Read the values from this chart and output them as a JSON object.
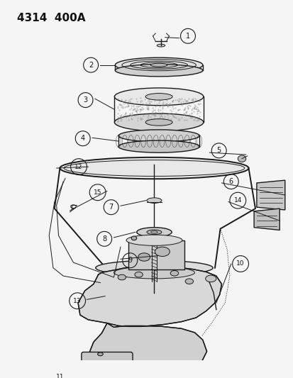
{
  "title": "4314  400A",
  "bg_color": "#f5f5f5",
  "line_color": "#1a1a1a",
  "label_color": "#111111",
  "fig_width": 4.14,
  "fig_height": 5.33,
  "dpi": 100
}
